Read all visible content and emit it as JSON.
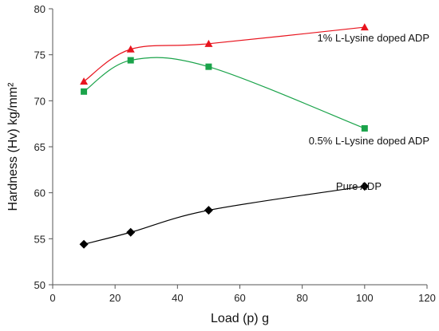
{
  "chart_data": {
    "type": "line",
    "xlabel": "Load (p) g",
    "ylabel": "Hardness (Hv) kg/mm²",
    "xlim": [
      0,
      120
    ],
    "ylim": [
      50,
      80
    ],
    "xticks": [
      0,
      20,
      40,
      60,
      80,
      100,
      120
    ],
    "yticks": [
      50,
      55,
      60,
      65,
      70,
      75,
      80
    ],
    "grid": false,
    "legend": "labels placed next to each series",
    "series": [
      {
        "name": "1% L-Lysine doped ADP",
        "color": "#e8141e",
        "marker": "triangle",
        "x": [
          10,
          25,
          50,
          100
        ],
        "y": [
          72.1,
          75.6,
          76.2,
          78.0
        ]
      },
      {
        "name": "0.5% L-Lysine doped ADP",
        "color": "#1aa34a",
        "marker": "square",
        "x": [
          10,
          25,
          50,
          100
        ],
        "y": [
          71.0,
          74.4,
          73.7,
          67.0
        ]
      },
      {
        "name": "Pure ADP",
        "color": "#000000",
        "marker": "diamond",
        "x": [
          10,
          25,
          50,
          100
        ],
        "y": [
          54.4,
          55.7,
          58.1,
          60.7
        ]
      }
    ]
  }
}
